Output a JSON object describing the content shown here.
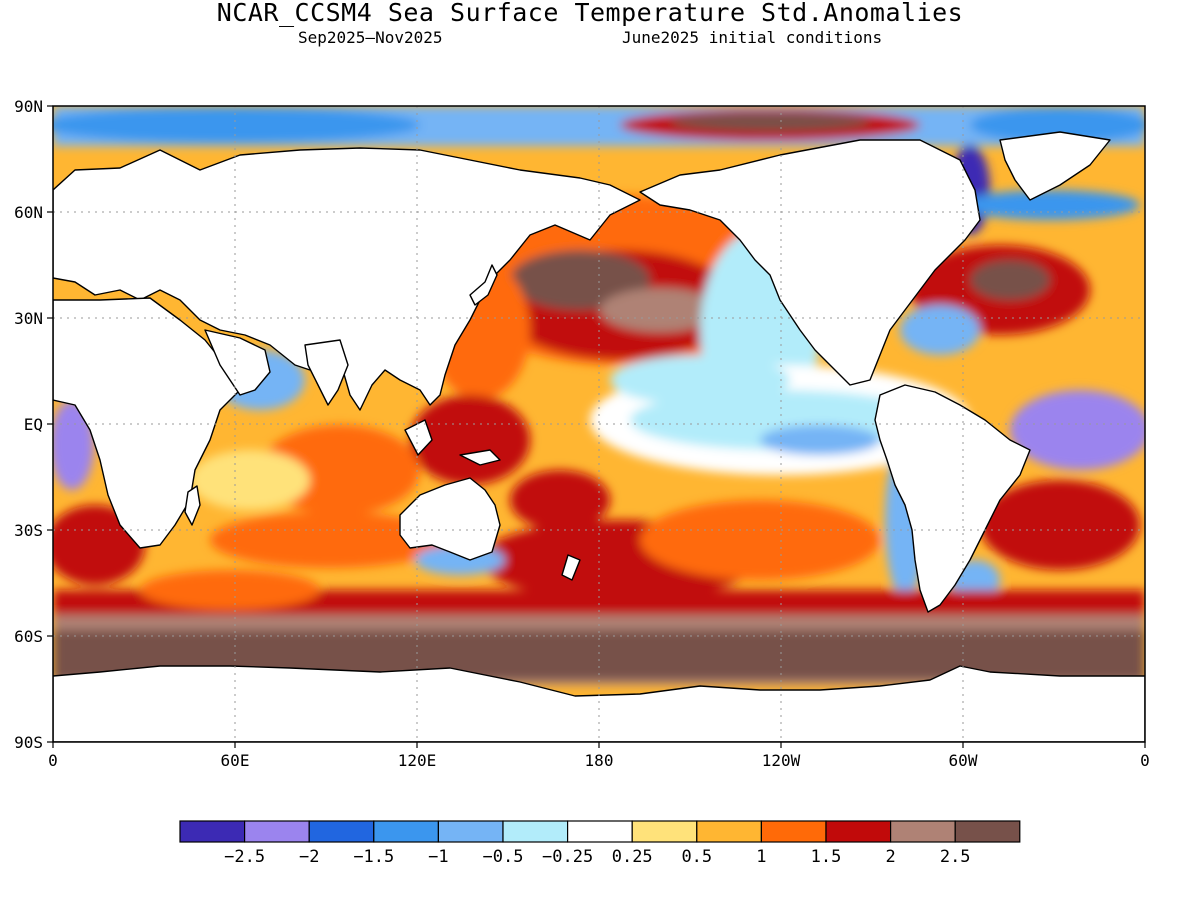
{
  "title": "NCAR_CCSM4 Sea Surface Temperature Std.Anomalies",
  "subtitle_left": "Sep2025–Nov2025",
  "subtitle_right": "June2025 initial conditions",
  "map": {
    "lat_labels": [
      "90N",
      "60N",
      "30N",
      "EQ",
      "30S",
      "60S",
      "90S"
    ],
    "lon_labels": [
      "0",
      "60E",
      "120E",
      "180",
      "120W",
      "60W",
      "0"
    ]
  },
  "legend": {
    "colors": [
      "#3c2ab4",
      "#9b84ee",
      "#2166e0",
      "#3b96ee",
      "#75b4f5",
      "#b2ecfa",
      "#ffffff",
      "#ffe27a",
      "#ffb632",
      "#ff6a08",
      "#c10a0a",
      "#af8275",
      "#77514a"
    ],
    "labels": [
      "−2.5",
      "−2",
      "−1.5",
      "−1",
      "−0.5",
      "−0.25",
      "0.25",
      "0.5",
      "1",
      "1.5",
      "2",
      "2.5"
    ]
  }
}
